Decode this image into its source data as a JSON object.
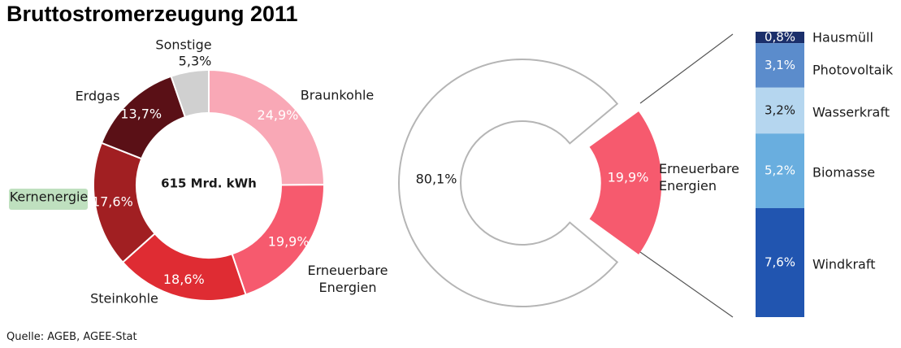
{
  "chart_data": [
    {
      "type": "pie",
      "title": "Bruttostromerzeugung 2011",
      "center_label": "615 Mrd. kWh",
      "slices": [
        {
          "name": "Braunkohle",
          "value": 24.9,
          "label": "24,9%",
          "color": "#f9a8b6"
        },
        {
          "name": "Erneuerbare Energien",
          "value": 19.9,
          "label": "19,9%",
          "color": "#f65a6e"
        },
        {
          "name": "Steinkohle",
          "value": 18.6,
          "label": "18,6%",
          "color": "#df2c33"
        },
        {
          "name": "Kernenergie",
          "value": 17.6,
          "label": "17,6%",
          "color": "#a11f22",
          "highlight_color": "#bfe0bf"
        },
        {
          "name": "Erdgas",
          "value": 13.7,
          "label": "13,7%",
          "color": "#5a1016"
        },
        {
          "name": "Sonstige",
          "value": 5.3,
          "label": "5,3%",
          "color": "#d0d0d0"
        }
      ]
    },
    {
      "type": "pie",
      "slices": [
        {
          "name": "",
          "value": 80.1,
          "label": "80,1%",
          "color": "#ffffff"
        },
        {
          "name": "Erneuerbare Energien",
          "value": 19.9,
          "label": "19,9%",
          "color": "#f65a6e"
        }
      ]
    },
    {
      "type": "bar",
      "stacked": true,
      "series": [
        {
          "name": "Hausmüll",
          "value": 0.8,
          "label": "0,8%",
          "color": "#1b2f6b"
        },
        {
          "name": "Photovoltaik",
          "value": 3.1,
          "label": "3,1%",
          "color": "#5b8ccc"
        },
        {
          "name": "Wasserkraft",
          "value": 3.2,
          "label": "3,2%",
          "color": "#b5d6ef"
        },
        {
          "name": "Biomasse",
          "value": 5.2,
          "label": "5,2%",
          "color": "#69aedf"
        },
        {
          "name": "Windkraft",
          "value": 7.6,
          "label": "7,6%",
          "color": "#2155b0"
        }
      ]
    }
  ],
  "source": "Quelle: AGEB, AGEE-Stat"
}
